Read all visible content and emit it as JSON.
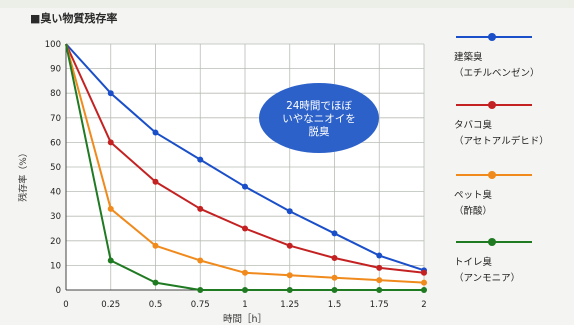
{
  "chart_data": {
    "type": "line",
    "title": "■臭い物質残存率",
    "xlabel": "時間［h］",
    "ylabel": "残存率（%）",
    "xlim": [
      0,
      2
    ],
    "ylim": [
      0,
      100
    ],
    "x": [
      0,
      0.25,
      0.5,
      0.75,
      1,
      1.25,
      1.5,
      1.75,
      2
    ],
    "x_tick_labels": [
      "0",
      "0.25",
      "0.5",
      "0.75",
      "1",
      "1.25",
      "1.5",
      "1.75",
      "2"
    ],
    "y_ticks": [
      0,
      10,
      20,
      30,
      40,
      50,
      60,
      70,
      80,
      90,
      100
    ],
    "grid": true,
    "legend_position": "right",
    "annotation": "24時間でほぼ\nいやなニオイを\n脱臭",
    "series": [
      {
        "name": "建築臭\n（エチルベンゼン）",
        "color": "#1a4fc9",
        "values": [
          100,
          80,
          64,
          53,
          42,
          32,
          23,
          14,
          8
        ]
      },
      {
        "name": "タバコ臭\n（アセトアルデヒド）",
        "color": "#c42222",
        "values": [
          100,
          60,
          44,
          33,
          25,
          18,
          13,
          9,
          7
        ]
      },
      {
        "name": "ペット臭\n（酢酸）",
        "color": "#f08a1c",
        "values": [
          100,
          33,
          18,
          12,
          7,
          6,
          5,
          4,
          3
        ]
      },
      {
        "name": "トイレ臭\n（アンモニア）",
        "color": "#1f7a22",
        "values": [
          100,
          12,
          3,
          0,
          0,
          0,
          0,
          0,
          0
        ]
      }
    ]
  }
}
